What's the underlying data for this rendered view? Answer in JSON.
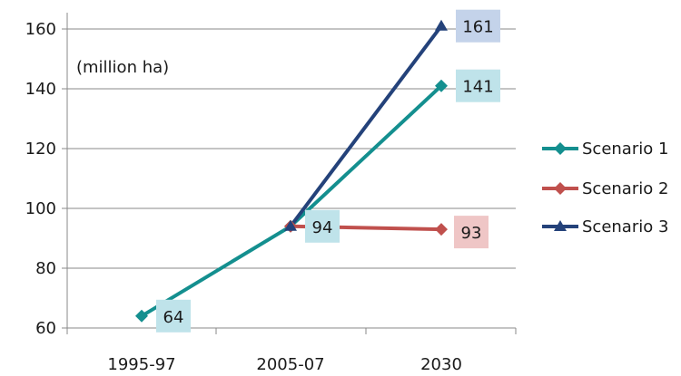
{
  "chart_data": {
    "type": "line",
    "title": "",
    "unit_label": "(million ha)",
    "xlabel": "",
    "ylabel": "",
    "categories": [
      "1995-97",
      "2005-07",
      "2030"
    ],
    "ylim": [
      60,
      160
    ],
    "yticks": [
      60,
      80,
      100,
      120,
      140,
      160
    ],
    "grid": true,
    "legend_position": "right",
    "series": [
      {
        "name": "Scenario 1",
        "values": [
          64,
          94,
          141
        ],
        "color": "#148f8f",
        "marker": "diamond"
      },
      {
        "name": "Scenario 2",
        "values": [
          null,
          94,
          93
        ],
        "color": "#c0504d",
        "marker": "diamond"
      },
      {
        "name": "Scenario 3",
        "values": [
          null,
          94,
          161
        ],
        "color": "#24427a",
        "marker": "triangle"
      }
    ],
    "data_labels": [
      {
        "category": "1995-97",
        "value": "64",
        "bg": "#bfe3ea"
      },
      {
        "category": "2005-07",
        "value": "94",
        "bg": "#bfe3ea"
      },
      {
        "category": "2030",
        "value": "141",
        "bg": "#bfe3ea"
      },
      {
        "category": "2030",
        "value": "93",
        "bg": "#efc6c6"
      },
      {
        "category": "2030",
        "value": "161",
        "bg": "#c4d3ea"
      }
    ]
  }
}
